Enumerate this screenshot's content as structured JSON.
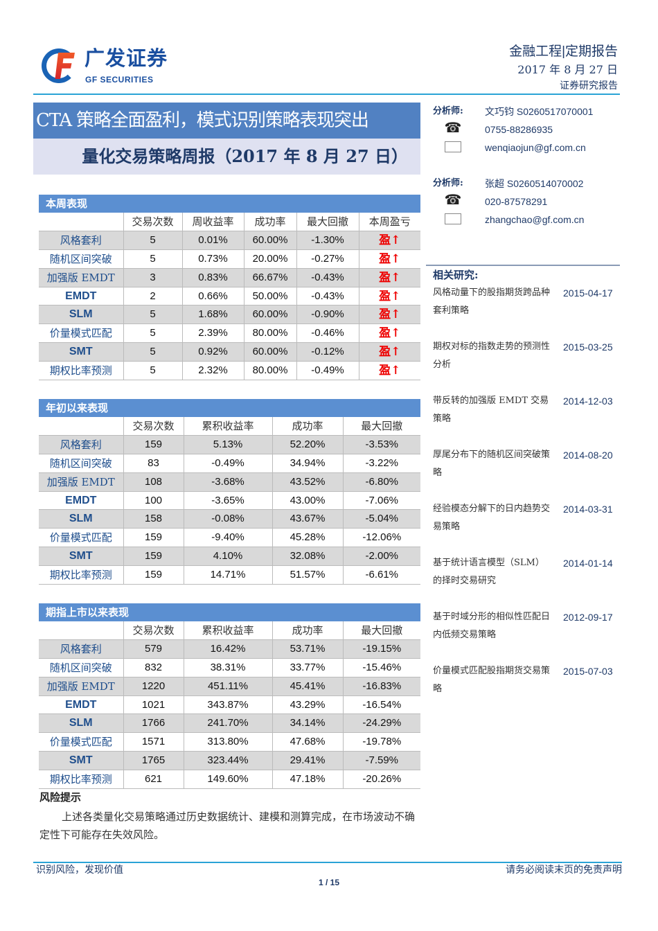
{
  "brand": {
    "cn": "广发证券",
    "en": "GF SECURITIES"
  },
  "header": {
    "category": "金融工程|定期报告",
    "date": "2017 年 8 月 27 日",
    "type": "证券研究报告"
  },
  "title": {
    "main": "CTA 策略全面盈利，模式识别策略表现突出",
    "sub": "量化交易策略周报（2017 年 8 月 27 日）"
  },
  "analysts": [
    {
      "label": "分析师:",
      "name": "文巧钧 S0260517070001",
      "phone": "0755-88286935",
      "email": "wenqiaojun@gf.com.cn"
    },
    {
      "label": "分析师:",
      "name": "张超 S0260514070002",
      "phone": "020-87578291",
      "email": "zhangchao@gf.com.cn"
    }
  ],
  "related": {
    "title": "相关研究:",
    "items": [
      {
        "title": "风格动量下的股指期货跨品种套利策略",
        "date": "2015-04-17"
      },
      {
        "title": "期权对标的指数走势的预测性分析",
        "date": "2015-03-25"
      },
      {
        "title": "带反转的加强版 EMDT 交易策略",
        "date": "2014-12-03"
      },
      {
        "title": "厚尾分布下的随机区间突破策略",
        "date": "2014-08-20"
      },
      {
        "title": "经验模态分解下的日内趋势交易策略",
        "date": "2014-03-31"
      },
      {
        "title": "基于统计语言模型（SLM）的择时交易研究",
        "date": "2014-01-14"
      },
      {
        "title": "基于时域分形的相似性匹配日内低频交易策略",
        "date": "2012-09-17"
      },
      {
        "title": "价量模式匹配股指期货交易策略",
        "date": "2015-07-03"
      }
    ]
  },
  "tables": [
    {
      "title": "本周表现",
      "headers": [
        "交易次数",
        "周收益率",
        "成功率",
        "最大回撤",
        "本周盈亏"
      ],
      "rows": [
        [
          "风格套利",
          "5",
          "0.01%",
          "60.00%",
          "-1.30%",
          "盈↑"
        ],
        [
          "随机区间突破",
          "5",
          "0.73%",
          "20.00%",
          "-0.27%",
          "盈↑"
        ],
        [
          "加强版 EMDT",
          "3",
          "0.83%",
          "66.67%",
          "-0.43%",
          "盈↑"
        ],
        [
          "EMDT",
          "2",
          "0.66%",
          "50.00%",
          "-0.43%",
          "盈↑"
        ],
        [
          "SLM",
          "5",
          "1.68%",
          "60.00%",
          "-0.90%",
          "盈↑"
        ],
        [
          "价量模式匹配",
          "5",
          "2.39%",
          "80.00%",
          "-0.46%",
          "盈↑"
        ],
        [
          "SMT",
          "5",
          "0.92%",
          "60.00%",
          "-0.12%",
          "盈↑"
        ],
        [
          "期权比率预测",
          "5",
          "2.32%",
          "80.00%",
          "-0.49%",
          "盈↑"
        ]
      ]
    },
    {
      "title": "年初以来表现",
      "headers": [
        "交易次数",
        "累积收益率",
        "成功率",
        "最大回撤"
      ],
      "rows": [
        [
          "风格套利",
          "159",
          "5.13%",
          "52.20%",
          "-3.53%"
        ],
        [
          "随机区间突破",
          "83",
          "-0.49%",
          "34.94%",
          "-3.22%"
        ],
        [
          "加强版 EMDT",
          "108",
          "-3.68%",
          "43.52%",
          "-6.80%"
        ],
        [
          "EMDT",
          "100",
          "-3.65%",
          "43.00%",
          "-7.06%"
        ],
        [
          "SLM",
          "158",
          "-0.08%",
          "43.67%",
          "-5.04%"
        ],
        [
          "价量模式匹配",
          "159",
          "-9.40%",
          "45.28%",
          "-12.06%"
        ],
        [
          "SMT",
          "159",
          "4.10%",
          "32.08%",
          "-2.00%"
        ],
        [
          "期权比率预测",
          "159",
          "14.71%",
          "51.57%",
          "-6.61%"
        ]
      ]
    },
    {
      "title": "期指上市以来表现",
      "headers": [
        "交易次数",
        "累积收益率",
        "成功率",
        "最大回撤"
      ],
      "rows": [
        [
          "风格套利",
          "579",
          "16.42%",
          "53.71%",
          "-19.15%"
        ],
        [
          "随机区间突破",
          "832",
          "38.31%",
          "33.77%",
          "-15.46%"
        ],
        [
          "加强版 EMDT",
          "1220",
          "451.11%",
          "45.41%",
          "-16.83%"
        ],
        [
          "EMDT",
          "1021",
          "343.87%",
          "43.29%",
          "-16.54%"
        ],
        [
          "SLM",
          "1766",
          "241.70%",
          "34.14%",
          "-24.29%"
        ],
        [
          "价量模式匹配",
          "1571",
          "313.80%",
          "47.68%",
          "-19.78%"
        ],
        [
          "SMT",
          "1765",
          "323.44%",
          "29.41%",
          "-7.59%"
        ],
        [
          "期权比率预测",
          "621",
          "149.60%",
          "47.18%",
          "-20.26%"
        ]
      ]
    }
  ],
  "risk": {
    "title": "风险提示",
    "text": "上述各类量化交易策略通过历史数据统计、建模和测算完成，在市场波动不确定性下可能存在失效风险。"
  },
  "footer": {
    "left": "识别风险，发现价值",
    "right": "请务必阅读末页的免责声明",
    "page": "1 / 15"
  }
}
